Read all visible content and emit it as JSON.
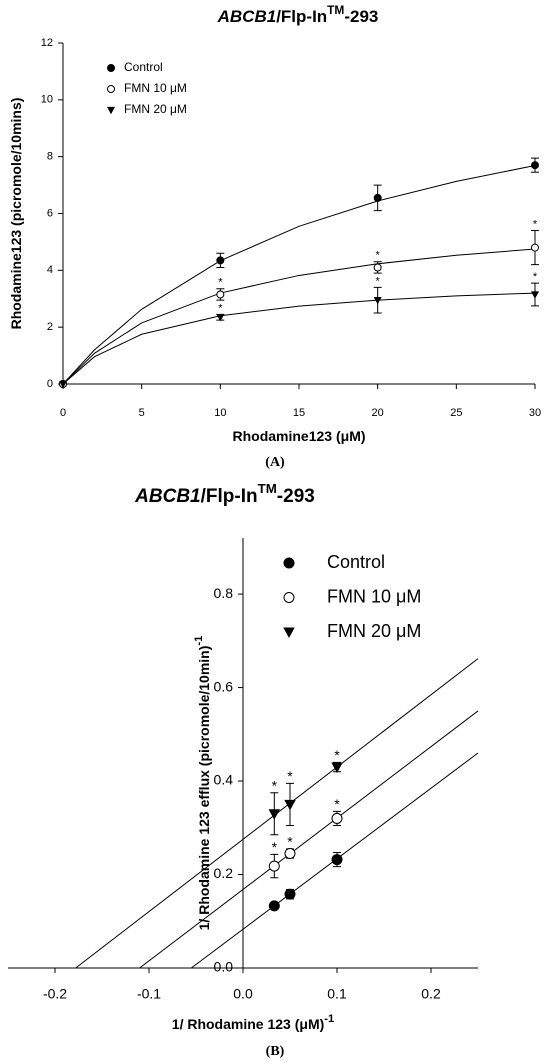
{
  "chart_data": [
    {
      "type": "scatter",
      "caption": "(A)",
      "title": [
        "ABCB1",
        "/Flp-In",
        "TM",
        "-293"
      ],
      "xlabel": "Rhodamine123 (μM)",
      "ylabel": "Rhodamine123 (picromole/10mins)",
      "xlim": [
        0,
        30
      ],
      "ylim": [
        0,
        12
      ],
      "xticks": [
        0,
        5,
        10,
        15,
        20,
        25,
        30
      ],
      "yticks": [
        0,
        2,
        4,
        6,
        8,
        10,
        12
      ],
      "x": [
        0,
        10,
        20,
        30
      ],
      "fit_x": [
        0,
        2,
        5,
        10,
        15,
        20,
        25,
        30
      ],
      "series": [
        {
          "name": "Control",
          "color": "#000000",
          "marker": "circle",
          "values": [
            0,
            4.35,
            6.55,
            7.7
          ],
          "errors": [
            null,
            0.25,
            0.45,
            0.25
          ],
          "labels": [
            null,
            null,
            null,
            null
          ],
          "fit_values": [
            0,
            1.2,
            2.63,
            4.34,
            5.55,
            6.44,
            7.13,
            7.69
          ]
        },
        {
          "name": "FMN 10 μM",
          "color": "#000000",
          "marker": "open-circle",
          "values": [
            0,
            3.15,
            4.1,
            4.8
          ],
          "errors": [
            null,
            0.2,
            0.2,
            0.6
          ],
          "labels": [
            null,
            "*",
            "*",
            "*"
          ],
          "fit_values": [
            0,
            1.08,
            2.15,
            3.2,
            3.82,
            4.23,
            4.53,
            4.75
          ]
        },
        {
          "name": "FMN 20 μM",
          "color": "#000000",
          "marker": "triangle-down",
          "values": [
            0,
            2.35,
            2.95,
            3.15
          ],
          "errors": [
            null,
            0.1,
            0.45,
            0.4
          ],
          "labels": [
            null,
            "*",
            "*",
            "*"
          ],
          "fit_values": [
            0,
            0.96,
            1.75,
            2.4,
            2.74,
            2.95,
            3.1,
            3.2
          ]
        }
      ]
    },
    {
      "type": "scatter",
      "caption": "(B)",
      "title": [
        "ABCB1",
        "/Flp-In",
        "TM",
        "-293"
      ],
      "xlabel": "1/ Rhodamine 123 (μM)",
      "xlabel_sup": "-1",
      "ylabel": "1/ Rhodamine 123 efflux (picromole/10min)",
      "ylabel_sup": "-1",
      "xlim": [
        -0.25,
        0.25
      ],
      "ylim": [
        0,
        0.92
      ],
      "xticks": [
        -0.2,
        -0.1,
        {
          "value": 0,
          "label": "0.0"
        },
        0.1,
        0.2
      ],
      "yticks": [
        {
          "value": 0,
          "label": "0.0"
        },
        0.2,
        0.4,
        0.6,
        0.8
      ],
      "x": [
        0.0333,
        0.05,
        0.1
      ],
      "series": [
        {
          "name": "Control",
          "color": "#000000",
          "marker": "circle",
          "values": [
            0.133,
            0.158,
            0.232
          ],
          "errors": [
            0.005,
            0.01,
            0.015
          ],
          "labels": [
            null,
            null,
            null
          ],
          "fit_x": [
            -0.055,
            0.25
          ],
          "fit_values": [
            0,
            0.46
          ]
        },
        {
          "name": "FMN 10 μM",
          "color": "#000000",
          "marker": "open-circle",
          "values": [
            0.218,
            0.245,
            0.32
          ],
          "errors": [
            0.025,
            0.01,
            0.015
          ],
          "labels": [
            "*",
            "*",
            "*"
          ],
          "fit_x": [
            -0.11,
            0.25
          ],
          "fit_values": [
            0,
            0.55
          ]
        },
        {
          "name": "FMN 20 μM",
          "color": "#000000",
          "marker": "triangle-down",
          "values": [
            0.33,
            0.35,
            0.43
          ],
          "errors": [
            0.045,
            0.045,
            0.01
          ],
          "labels": [
            "*",
            "*",
            "*"
          ],
          "fit_x": [
            -0.178,
            0.25
          ],
          "fit_values": [
            0,
            0.662
          ]
        }
      ]
    }
  ]
}
